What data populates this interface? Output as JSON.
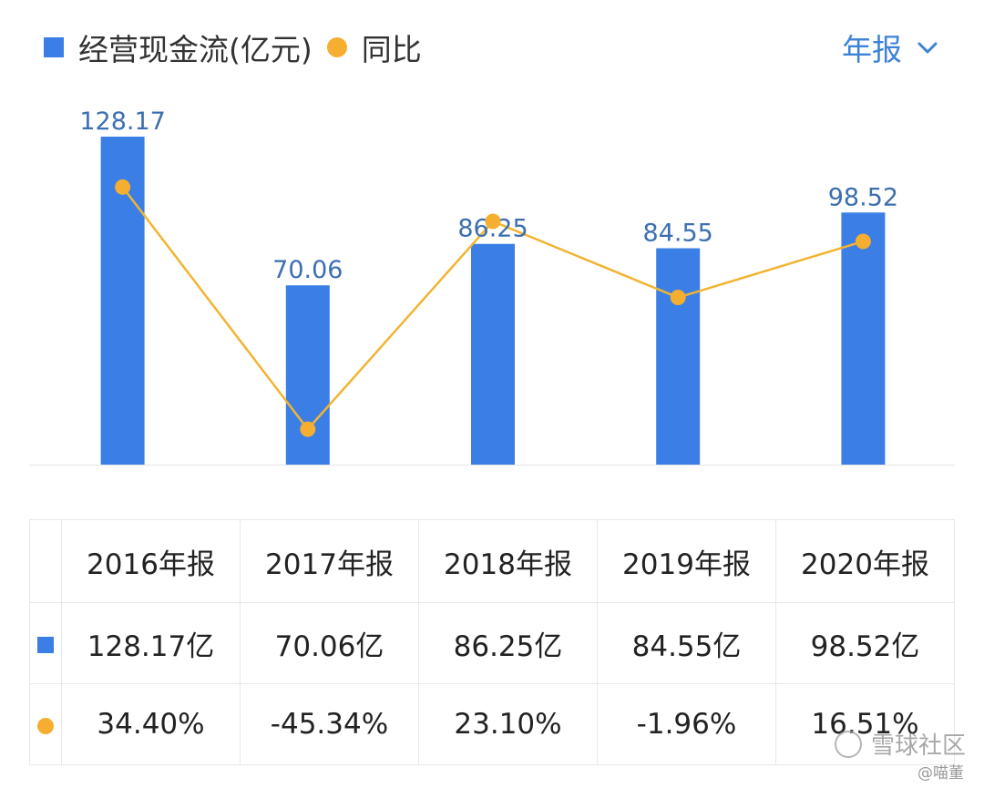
{
  "colors": {
    "bar": "#3a7ee6",
    "line": "#f2b431",
    "dot": "#f5ae2f",
    "axis": "#e5e5e5",
    "positive": "#d23f3f",
    "negative": "#2aa36b"
  },
  "legend": {
    "bar_label": "经营现金流(亿元)",
    "line_label": "同比"
  },
  "period_selector": {
    "label": "年报",
    "icon": "chevron-down-icon"
  },
  "chart_data": {
    "type": "bar",
    "categories": [
      "2016年报",
      "2017年报",
      "2018年报",
      "2019年报",
      "2020年报"
    ],
    "series": [
      {
        "name": "经营现金流(亿元)",
        "type": "bar",
        "values": [
          128.17,
          70.06,
          86.25,
          84.55,
          98.52
        ]
      },
      {
        "name": "同比",
        "type": "line",
        "values": [
          34.4,
          -45.34,
          23.1,
          -1.96,
          16.51
        ]
      }
    ],
    "ylim": [
      0,
      128.17
    ],
    "y2lim": [
      -60,
      60
    ],
    "grid": false,
    "legend_position": "top-left"
  },
  "table": {
    "headers": [
      "2016年报",
      "2017年报",
      "2018年报",
      "2019年报",
      "2020年报"
    ],
    "values": [
      "128.17亿",
      "70.06亿",
      "86.25亿",
      "84.55亿",
      "98.52亿"
    ],
    "yoy": [
      "34.40%",
      "-45.34%",
      "23.10%",
      "-1.96%",
      "16.51%"
    ]
  },
  "watermark": {
    "text": "雪球社区",
    "handle": "@喵董"
  }
}
